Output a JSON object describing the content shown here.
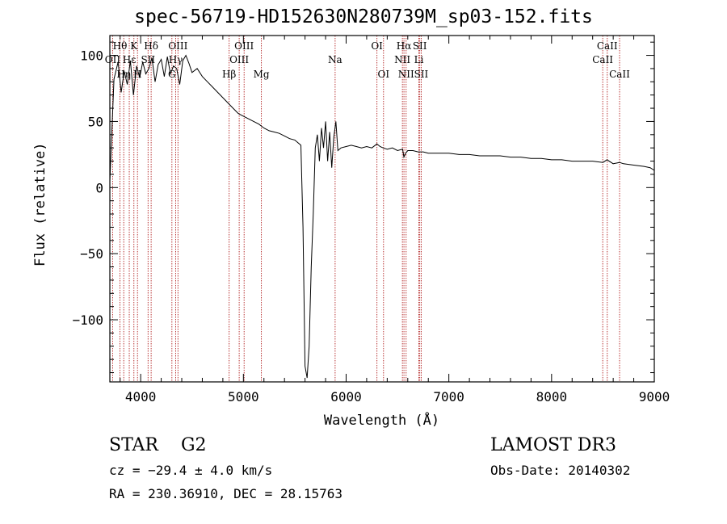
{
  "header": {
    "title": "spec-56719-HD152630N280739M_sp03-152.fits"
  },
  "info": {
    "object_class": "STAR",
    "subclass": "G2",
    "survey": "LAMOST DR3",
    "redshift_text": "cz = −29.4 ± 4.0 km/s",
    "obs_date_text": "Obs-Date: 20140302",
    "coords_text": "RA = 230.36910, DEC =  28.15763"
  },
  "colors": {
    "spectrum": "#000000",
    "line_marker": "#b22222",
    "axis": "#000000"
  },
  "chart_data": {
    "type": "line",
    "title": "spec-56719-HD152630N280739M_sp03-152.fits",
    "xlabel": "Wavelength (Å)",
    "ylabel": "Flux (relative)",
    "xlim": [
      3700,
      9000
    ],
    "ylim": [
      -147,
      115
    ],
    "x_ticks": [
      4000,
      5000,
      6000,
      7000,
      8000,
      9000
    ],
    "x_tick_labels": [
      "4000",
      "5000",
      "6000",
      "7000",
      "8000",
      "9000"
    ],
    "y_ticks": [
      100,
      50,
      0,
      -50,
      -100
    ],
    "y_tick_labels": [
      "100",
      "50",
      "0",
      "−50",
      "−100"
    ],
    "series": [
      {
        "name": "flux",
        "x": [
          3700,
          3740,
          3780,
          3810,
          3840,
          3870,
          3900,
          3930,
          3960,
          3990,
          4020,
          4050,
          4080,
          4110,
          4140,
          4170,
          4200,
          4230,
          4260,
          4290,
          4320,
          4350,
          4380,
          4410,
          4440,
          4470,
          4500,
          4550,
          4600,
          4650,
          4700,
          4750,
          4800,
          4850,
          4900,
          4950,
          5000,
          5050,
          5100,
          5150,
          5200,
          5250,
          5300,
          5350,
          5400,
          5450,
          5500,
          5530,
          5560,
          5580,
          5600,
          5620,
          5640,
          5660,
          5680,
          5700,
          5720,
          5740,
          5760,
          5780,
          5800,
          5820,
          5840,
          5860,
          5880,
          5900,
          5920,
          5950,
          6000,
          6050,
          6100,
          6150,
          6200,
          6250,
          6300,
          6330,
          6360,
          6400,
          6450,
          6500,
          6550,
          6562,
          6580,
          6600,
          6650,
          6700,
          6750,
          6800,
          6900,
          7000,
          7100,
          7200,
          7300,
          7400,
          7500,
          7600,
          7700,
          7800,
          7900,
          8000,
          8100,
          8200,
          8300,
          8400,
          8500,
          8540,
          8600,
          8662,
          8700,
          8800,
          8900,
          8960,
          9000
        ],
        "values": [
          5,
          82,
          95,
          72,
          88,
          78,
          96,
          70,
          92,
          83,
          95,
          86,
          90,
          98,
          80,
          93,
          97,
          84,
          99,
          86,
          92,
          90,
          78,
          96,
          100,
          94,
          87,
          90,
          84,
          80,
          76,
          72,
          68,
          64,
          60,
          56,
          54,
          52,
          50,
          48,
          45,
          43,
          42,
          41,
          39,
          37,
          36,
          34,
          32,
          -30,
          -135,
          -144,
          -120,
          -60,
          -20,
          30,
          40,
          20,
          45,
          30,
          50,
          20,
          42,
          15,
          38,
          50,
          28,
          30,
          31,
          32,
          31,
          30,
          31,
          30,
          33,
          31,
          30,
          29,
          30,
          28,
          29,
          23,
          26,
          28,
          28,
          27,
          27,
          26,
          26,
          26,
          25,
          25,
          24,
          24,
          24,
          23,
          23,
          22,
          22,
          21,
          21,
          20,
          20,
          20,
          19,
          21,
          18,
          19,
          18,
          17,
          16,
          15,
          13
        ]
      }
    ],
    "line_markers": [
      {
        "label": "Hθ",
        "wavelength": 3798,
        "row": 1
      },
      {
        "label": "OII",
        "wavelength": 3727,
        "row": 2
      },
      {
        "label": "Hη",
        "wavelength": 3835,
        "row": 3
      },
      {
        "label": "Hε",
        "wavelength": 3889,
        "row": 2
      },
      {
        "label": "K",
        "wavelength": 3934,
        "row": 1
      },
      {
        "label": "H",
        "wavelength": 3969,
        "row": 3
      },
      {
        "label": "Hδ",
        "wavelength": 4102,
        "row": 1
      },
      {
        "label": "SII",
        "wavelength": 4072,
        "row": 2
      },
      {
        "label": "OIII",
        "wavelength": 4363,
        "row": 1
      },
      {
        "label": "Hγ",
        "wavelength": 4341,
        "row": 2
      },
      {
        "label": "G",
        "wavelength": 4304,
        "row": 3
      },
      {
        "label": "Hβ",
        "wavelength": 4861,
        "row": 3
      },
      {
        "label": "OIII",
        "wavelength": 5007,
        "row": 1
      },
      {
        "label": "OIII",
        "wavelength": 4959,
        "row": 2
      },
      {
        "label": "Mg",
        "wavelength": 5175,
        "row": 3
      },
      {
        "label": "Na",
        "wavelength": 5893,
        "row": 2
      },
      {
        "label": "OI",
        "wavelength": 6300,
        "row": 1
      },
      {
        "label": "OI",
        "wavelength": 6364,
        "row": 3
      },
      {
        "label": "Hα",
        "wavelength": 6563,
        "row": 1
      },
      {
        "label": "NII",
        "wavelength": 6548,
        "row": 2
      },
      {
        "label": "NII",
        "wavelength": 6584,
        "row": 3
      },
      {
        "label": "SII",
        "wavelength": 6717,
        "row": 1
      },
      {
        "label": "Li",
        "wavelength": 6708,
        "row": 2
      },
      {
        "label": "SII",
        "wavelength": 6731,
        "row": 3
      },
      {
        "label": "CaII",
        "wavelength": 8542,
        "row": 1
      },
      {
        "label": "CaII",
        "wavelength": 8498,
        "row": 2
      },
      {
        "label": "CaII",
        "wavelength": 8662,
        "row": 3
      }
    ]
  }
}
